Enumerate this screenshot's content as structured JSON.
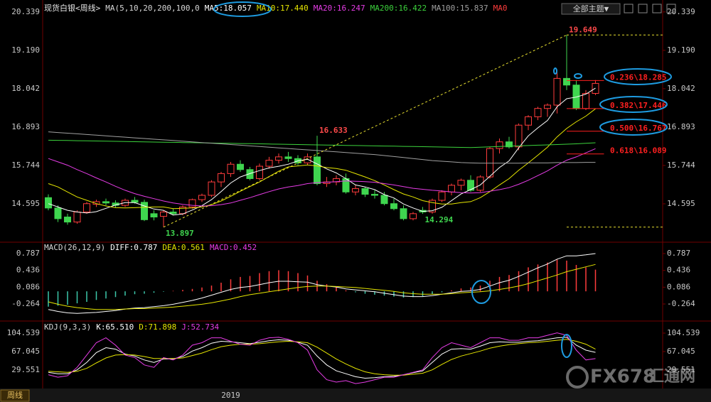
{
  "toolbar": {
    "theme_button": "全部主题▼"
  },
  "chart_data": [
    {
      "type": "candlestick",
      "title": "现货白银<周线>",
      "indicator": "MA(5,10,20,200,100,0",
      "up_color": "#ff3c3c",
      "down_color": "#3fd64f",
      "open": [
        14.78,
        14.47,
        14.2,
        14.05,
        14.35,
        14.58,
        14.66,
        14.62,
        14.55,
        14.7,
        14.64,
        14.3,
        14.22,
        14.35,
        14.3,
        14.5,
        14.72,
        14.85,
        15.25,
        15.5,
        15.78,
        15.62,
        15.35,
        15.72,
        15.9,
        16.0,
        15.95,
        15.82,
        16.0,
        15.2,
        15.25,
        15.35,
        14.95,
        15.05,
        14.88,
        14.85,
        14.6,
        14.45,
        14.15,
        14.4,
        14.35,
        14.7,
        14.95,
        15.15,
        15.3,
        15.0,
        15.4,
        16.25,
        16.45,
        16.3,
        16.95,
        17.2,
        17.45,
        17.55,
        18.35,
        18.15,
        17.45,
        17.9
      ],
      "high": [
        14.88,
        14.55,
        14.3,
        14.4,
        14.65,
        14.72,
        14.75,
        14.7,
        14.75,
        14.8,
        14.72,
        14.4,
        14.4,
        14.45,
        14.55,
        14.75,
        14.9,
        15.3,
        15.55,
        15.85,
        15.9,
        15.7,
        15.8,
        16.0,
        16.1,
        16.15,
        16.05,
        16.1,
        16.633,
        15.4,
        15.45,
        15.5,
        15.15,
        15.1,
        15.0,
        14.95,
        14.75,
        14.55,
        14.35,
        14.5,
        14.75,
        15.0,
        15.2,
        15.35,
        15.45,
        15.45,
        16.3,
        16.55,
        16.6,
        17.0,
        17.25,
        17.5,
        17.6,
        18.6,
        19.649,
        18.3,
        18.0,
        18.3
      ],
      "low": [
        14.4,
        14.05,
        13.97,
        14.0,
        14.3,
        14.5,
        14.55,
        14.48,
        14.5,
        14.6,
        14.08,
        14.1,
        13.897,
        14.25,
        14.25,
        14.45,
        14.65,
        14.8,
        15.1,
        15.4,
        15.55,
        15.3,
        15.3,
        15.65,
        15.8,
        15.85,
        15.75,
        15.75,
        15.15,
        15.1,
        15.15,
        14.9,
        14.85,
        14.8,
        14.75,
        14.55,
        14.4,
        14.1,
        14.1,
        14.294,
        14.3,
        14.65,
        14.85,
        15.0,
        14.95,
        14.95,
        15.35,
        16.1,
        16.25,
        16.2,
        16.8,
        17.1,
        17.2,
        17.3,
        18.0,
        17.4,
        17.4,
        17.85
      ],
      "close": [
        14.47,
        14.15,
        14.05,
        14.35,
        14.6,
        14.66,
        14.62,
        14.55,
        14.7,
        14.64,
        14.12,
        14.2,
        14.35,
        14.3,
        14.5,
        14.72,
        14.85,
        15.25,
        15.5,
        15.78,
        15.62,
        15.35,
        15.72,
        15.9,
        16.0,
        15.95,
        15.82,
        16.0,
        15.2,
        15.25,
        15.35,
        14.95,
        15.05,
        14.88,
        14.85,
        14.6,
        14.45,
        14.15,
        14.3,
        14.35,
        14.7,
        14.95,
        15.15,
        15.3,
        15.0,
        15.4,
        16.25,
        16.45,
        16.3,
        16.95,
        17.2,
        17.45,
        17.55,
        18.35,
        18.15,
        17.45,
        17.9,
        18.2
      ],
      "series": [
        {
          "name": "MA5:18.057",
          "color": "#ffffff",
          "values": [
            14.6,
            14.5,
            14.4,
            14.35,
            14.32,
            14.36,
            14.46,
            14.56,
            14.63,
            14.63,
            14.53,
            14.44,
            14.4,
            14.26,
            14.29,
            14.41,
            14.54,
            14.72,
            14.96,
            15.22,
            15.4,
            15.5,
            15.59,
            15.67,
            15.72,
            15.78,
            15.88,
            15.93,
            15.79,
            15.64,
            15.52,
            15.35,
            15.16,
            15.1,
            15.02,
            14.87,
            14.77,
            14.59,
            14.47,
            14.37,
            14.39,
            14.49,
            14.69,
            14.89,
            15.02,
            15.16,
            15.42,
            15.68,
            15.88,
            16.27,
            16.63,
            16.87,
            17.09,
            17.5,
            17.74,
            17.79,
            17.88,
            18.057
          ]
        },
        {
          "name": "MA10:17.440",
          "color": "#e6e600",
          "values": [
            15.2,
            15.1,
            14.95,
            14.8,
            14.7,
            14.6,
            14.53,
            14.48,
            14.47,
            14.48,
            14.49,
            14.5,
            14.5,
            14.45,
            14.46,
            14.47,
            14.5,
            14.57,
            14.68,
            14.82,
            14.97,
            15.11,
            15.25,
            15.41,
            15.57,
            15.7,
            15.73,
            15.76,
            15.73,
            15.68,
            15.65,
            15.6,
            15.5,
            15.4,
            15.29,
            15.16,
            15.02,
            14.89,
            14.8,
            14.69,
            14.63,
            14.59,
            14.59,
            14.63,
            14.66,
            14.78,
            14.96,
            15.16,
            15.35,
            15.6,
            15.82,
            16.05,
            16.29,
            16.6,
            16.85,
            17.05,
            17.22,
            17.44
          ]
        },
        {
          "name": "MA20:16.247",
          "color": "#e63ce6",
          "values": [
            15.95,
            15.85,
            15.75,
            15.62,
            15.5,
            15.37,
            15.25,
            15.12,
            15.0,
            14.9,
            14.82,
            14.75,
            14.68,
            14.62,
            14.58,
            14.55,
            14.53,
            14.54,
            14.57,
            14.62,
            14.7,
            14.78,
            14.87,
            14.96,
            15.04,
            15.1,
            15.14,
            15.2,
            15.23,
            15.24,
            15.26,
            15.28,
            15.27,
            15.26,
            15.24,
            15.2,
            15.16,
            15.11,
            15.06,
            15.03,
            15.0,
            14.98,
            14.95,
            14.93,
            14.92,
            14.93,
            14.97,
            15.02,
            15.08,
            15.18,
            15.3,
            15.44,
            15.58,
            15.75,
            15.9,
            16.0,
            16.12,
            16.247
          ]
        },
        {
          "name": "MA200:16.422",
          "color": "#3cd23c",
          "values": [
            16.5,
            16.495,
            16.49,
            16.485,
            16.48,
            16.475,
            16.47,
            16.465,
            16.46,
            16.455,
            16.45,
            16.445,
            16.44,
            16.435,
            16.43,
            16.425,
            16.42,
            16.415,
            16.41,
            16.405,
            16.4,
            16.395,
            16.39,
            16.385,
            16.38,
            16.375,
            16.37,
            16.365,
            16.36,
            16.355,
            16.35,
            16.345,
            16.34,
            16.335,
            16.33,
            16.325,
            16.32,
            16.315,
            16.31,
            16.305,
            16.3,
            16.295,
            16.29,
            16.285,
            16.28,
            16.29,
            16.3,
            16.31,
            16.32,
            16.33,
            16.34,
            16.35,
            16.36,
            16.37,
            16.38,
            16.39,
            16.405,
            16.422
          ]
        },
        {
          "name": "MA100:15.837",
          "color": "#a0a0a0",
          "values": [
            16.75,
            16.73,
            16.71,
            16.69,
            16.67,
            16.65,
            16.63,
            16.61,
            16.59,
            16.57,
            16.55,
            16.53,
            16.51,
            16.49,
            16.47,
            16.45,
            16.43,
            16.41,
            16.39,
            16.37,
            16.35,
            16.33,
            16.31,
            16.29,
            16.27,
            16.25,
            16.23,
            16.21,
            16.19,
            16.17,
            16.15,
            16.13,
            16.11,
            16.09,
            16.07,
            16.04,
            16.01,
            15.98,
            15.95,
            15.92,
            15.89,
            15.87,
            15.85,
            15.83,
            15.82,
            15.81,
            15.81,
            15.81,
            15.81,
            15.81,
            15.82,
            15.82,
            15.82,
            15.83,
            15.83,
            15.83,
            15.835,
            15.837
          ]
        }
      ],
      "legend_extra": {
        "name": "MA0",
        "color": "#ff3c3c"
      },
      "ylim": [
        13.51,
        20.59
      ],
      "yticks": [
        20.339,
        {
          "value": 19.19,
          "label": "19.190"
        },
        18.042,
        16.893,
        15.744,
        14.595
      ],
      "annotations": [
        {
          "value": 19.649,
          "color": "#ff4a4a"
        },
        {
          "value": 16.633,
          "color": "#ff4a4a"
        },
        {
          "value": 13.897,
          "color": "#3fd64f"
        },
        {
          "value": 14.294,
          "color": "#3fd64f"
        }
      ],
      "trend_color": "#e8e030",
      "fib_color": "#ff2020",
      "fib_levels": [
        {
          "value": 18.285,
          "label": "0.236\\18.285"
        },
        {
          "value": 17.446,
          "label": "0.382\\17.446"
        },
        {
          "value": 16.767,
          "label": "0.500\\16.767"
        },
        {
          "value": 16.089,
          "label": "0.618\\16.089"
        }
      ]
    },
    {
      "type": "combo",
      "indicator": "MACD(26,12,9)",
      "series": [
        {
          "name": "DIFF:0.787",
          "color": "#ffffff",
          "values": [
            -0.38,
            -0.42,
            -0.45,
            -0.46,
            -0.45,
            -0.44,
            -0.42,
            -0.4,
            -0.37,
            -0.35,
            -0.34,
            -0.32,
            -0.3,
            -0.27,
            -0.23,
            -0.19,
            -0.14,
            -0.08,
            -0.02,
            0.04,
            0.08,
            0.1,
            0.14,
            0.18,
            0.21,
            0.21,
            0.2,
            0.19,
            0.14,
            0.11,
            0.09,
            0.05,
            0.03,
            0.01,
            -0.01,
            -0.04,
            -0.07,
            -0.1,
            -0.11,
            -0.11,
            -0.09,
            -0.06,
            -0.03,
            0.0,
            0.01,
            0.04,
            0.11,
            0.18,
            0.23,
            0.31,
            0.4,
            0.49,
            0.57,
            0.67,
            0.74,
            0.74,
            0.76,
            0.787
          ]
        },
        {
          "name": "DEA:0.561",
          "color": "#e6e600",
          "values": [
            -0.22,
            -0.27,
            -0.31,
            -0.34,
            -0.36,
            -0.38,
            -0.38,
            -0.38,
            -0.37,
            -0.36,
            -0.36,
            -0.35,
            -0.34,
            -0.33,
            -0.31,
            -0.29,
            -0.27,
            -0.24,
            -0.2,
            -0.16,
            -0.11,
            -0.07,
            -0.04,
            -0.01,
            0.02,
            0.05,
            0.08,
            0.1,
            0.11,
            0.11,
            0.1,
            0.09,
            0.08,
            0.06,
            0.04,
            0.02,
            0.0,
            -0.03,
            -0.05,
            -0.06,
            -0.06,
            -0.06,
            -0.05,
            -0.03,
            -0.02,
            -0.01,
            0.01,
            0.04,
            0.07,
            0.11,
            0.16,
            0.22,
            0.28,
            0.34,
            0.41,
            0.46,
            0.51,
            0.561
          ]
        },
        {
          "name": "MACD:0.452",
          "color": "#e63ce6",
          "up_color": "#ff3c3c",
          "down_color": "#3cc8aa",
          "values": [
            -0.32,
            -0.3,
            -0.28,
            -0.25,
            -0.22,
            -0.18,
            -0.15,
            -0.12,
            -0.09,
            -0.06,
            -0.05,
            -0.03,
            -0.01,
            0.01,
            0.03,
            0.05,
            0.08,
            0.12,
            0.18,
            0.25,
            0.3,
            0.32,
            0.38,
            0.42,
            0.44,
            0.42,
            0.38,
            0.33,
            0.22,
            0.15,
            0.09,
            0.02,
            -0.02,
            -0.05,
            -0.07,
            -0.09,
            -0.11,
            -0.13,
            -0.12,
            -0.1,
            -0.06,
            -0.02,
            0.02,
            0.06,
            0.08,
            0.12,
            0.22,
            0.3,
            0.34,
            0.42,
            0.5,
            0.56,
            0.6,
            0.66,
            0.64,
            0.55,
            0.5,
            0.452
          ]
        }
      ],
      "ylim": [
        -0.59,
        0.965
      ],
      "yticks": [
        0.787,
        0.436,
        0.086,
        -0.264
      ]
    },
    {
      "type": "line",
      "indicator": "KDJ(9,3,3)",
      "categories": [
        null,
        null,
        null,
        null,
        null,
        null,
        null,
        null,
        null,
        null,
        null,
        null,
        null,
        null,
        null,
        null,
        null,
        null,
        null,
        "2019",
        null,
        null,
        null,
        null,
        null,
        null,
        null,
        null,
        null,
        null,
        null,
        null,
        null,
        null,
        null,
        null,
        null,
        null,
        null,
        null,
        null,
        null,
        null,
        null,
        null,
        null,
        null,
        null,
        null,
        null,
        null,
        null,
        null,
        null,
        null,
        null,
        null,
        null
      ],
      "series": [
        {
          "name": "K:65.510",
          "color": "#ffffff",
          "values": [
            25,
            22,
            22,
            30,
            45,
            65,
            75,
            72,
            62,
            58,
            50,
            45,
            52,
            52,
            57,
            68,
            75,
            84,
            88,
            87,
            85,
            83,
            86,
            89,
            91,
            90,
            86,
            80,
            58,
            40,
            28,
            22,
            16,
            13,
            14,
            16,
            17,
            20,
            24,
            28,
            45,
            62,
            72,
            73,
            72,
            78,
            85,
            87,
            86,
            86,
            88,
            89,
            92,
            95,
            96,
            80,
            70,
            65.51
          ]
        },
        {
          "name": "D:71.898",
          "color": "#e6e600",
          "values": [
            27,
            26,
            25,
            27,
            33,
            44,
            54,
            60,
            61,
            60,
            57,
            53,
            53,
            53,
            54,
            59,
            64,
            71,
            77,
            80,
            82,
            82,
            83,
            85,
            87,
            88,
            87,
            85,
            76,
            64,
            52,
            42,
            33,
            26,
            22,
            20,
            19,
            19,
            21,
            23,
            30,
            41,
            51,
            58,
            63,
            68,
            74,
            78,
            81,
            83,
            85,
            86,
            88,
            90,
            92,
            88,
            82,
            71.898
          ]
        },
        {
          "name": "J:52.734",
          "color": "#e63ce6",
          "values": [
            20,
            15,
            18,
            35,
            60,
            85,
            95,
            80,
            60,
            55,
            40,
            35,
            55,
            50,
            60,
            80,
            85,
            95,
            95,
            88,
            82,
            80,
            90,
            95,
            96,
            92,
            85,
            70,
            30,
            10,
            5,
            8,
            2,
            5,
            10,
            15,
            15,
            20,
            25,
            30,
            55,
            75,
            85,
            80,
            75,
            85,
            95,
            95,
            90,
            90,
            95,
            95,
            100,
            105,
            100,
            70,
            50,
            52.734
          ]
        }
      ],
      "ylim": [
        -5.06,
        124.73
      ],
      "yticks": [
        104.539,
        67.045,
        29.551
      ]
    }
  ],
  "footer": {
    "period": "周线"
  },
  "watermark": {
    "brand": "FX678",
    "name": "汇通网"
  }
}
